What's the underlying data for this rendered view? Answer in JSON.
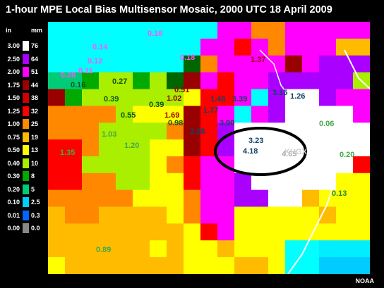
{
  "title": "1-hour MPE Local Bias Multisensor Mosaic, 2000 UTC 18 April 2009",
  "legend": {
    "left_unit": "in",
    "right_unit": "mm",
    "left_labels": [
      "3.00",
      "2.50",
      "2.00",
      "1.75",
      "1.50",
      "1.25",
      "1.00",
      "0.75",
      "0.50",
      "0.40",
      "0.30",
      "0.20",
      "0.10",
      "0.01",
      "0.00"
    ],
    "right_labels": [
      "76",
      "64",
      "51",
      "44",
      "38",
      "32",
      "25",
      "19",
      "13",
      "10",
      "8",
      "5",
      "2.5",
      "0.3",
      "0.0"
    ],
    "colors": [
      "#ffffff",
      "#aa00ff",
      "#ff00ff",
      "#990000",
      "#cc0000",
      "#ff0000",
      "#ff8800",
      "#ffbb00",
      "#ffff00",
      "#aaee00",
      "#00aa00",
      "#00cc77",
      "#00ccff",
      "#0066ff",
      "#888888"
    ]
  },
  "map_values": [
    {
      "text": "0.16",
      "color": "#ff55ff"
    },
    {
      "text": "0.14",
      "color": "#ff55ff"
    },
    {
      "text": "0.18",
      "color": "#ff55ff"
    },
    {
      "text": "0.12",
      "color": "#ff55ff"
    },
    {
      "text": "0.11",
      "color": "#ff55ff"
    },
    {
      "text": "0.20",
      "color": "#ff55ff"
    },
    {
      "text": "1.37",
      "color": "#990000"
    },
    {
      "text": "0.16",
      "color": "#115511"
    },
    {
      "text": "0.27",
      "color": "#115511"
    },
    {
      "text": "0.39",
      "color": "#115511"
    },
    {
      "text": "0.55",
      "color": "#115511"
    },
    {
      "text": "1.02",
      "color": "#990000"
    },
    {
      "text": "1.48",
      "color": "#114466"
    },
    {
      "text": "3.39",
      "color": "#114466"
    },
    {
      "text": "3.15",
      "color": "#114466"
    },
    {
      "text": "1.26",
      "color": "#114466"
    },
    {
      "text": "1.77",
      "color": "#114466"
    },
    {
      "text": "2.28",
      "color": "#114466"
    },
    {
      "text": "3.90",
      "color": "#114466"
    },
    {
      "text": "3.23",
      "color": "#114466"
    },
    {
      "text": "4.18",
      "color": "#114466"
    },
    {
      "text": "4.65",
      "color": "#aaaaaa"
    },
    {
      "text": "KHGX",
      "color": "#cccccc"
    },
    {
      "text": "0.06",
      "color": "#44aa44"
    },
    {
      "text": "0.20",
      "color": "#44aa44"
    },
    {
      "text": "0.13",
      "color": "#228833"
    },
    {
      "text": "0.89",
      "color": "#44aa44"
    },
    {
      "text": "1.35",
      "color": "#44aa44"
    },
    {
      "text": "1.03",
      "color": "#44aa44"
    },
    {
      "text": "1.20",
      "color": "#44aa44"
    },
    {
      "text": "0.39",
      "color": "#115511"
    },
    {
      "text": "0.51",
      "color": "#990000"
    },
    {
      "text": "1.69",
      "color": "#990000"
    },
    {
      "text": "0.98",
      "color": "#115511"
    }
  ],
  "credit": "NOAA"
}
